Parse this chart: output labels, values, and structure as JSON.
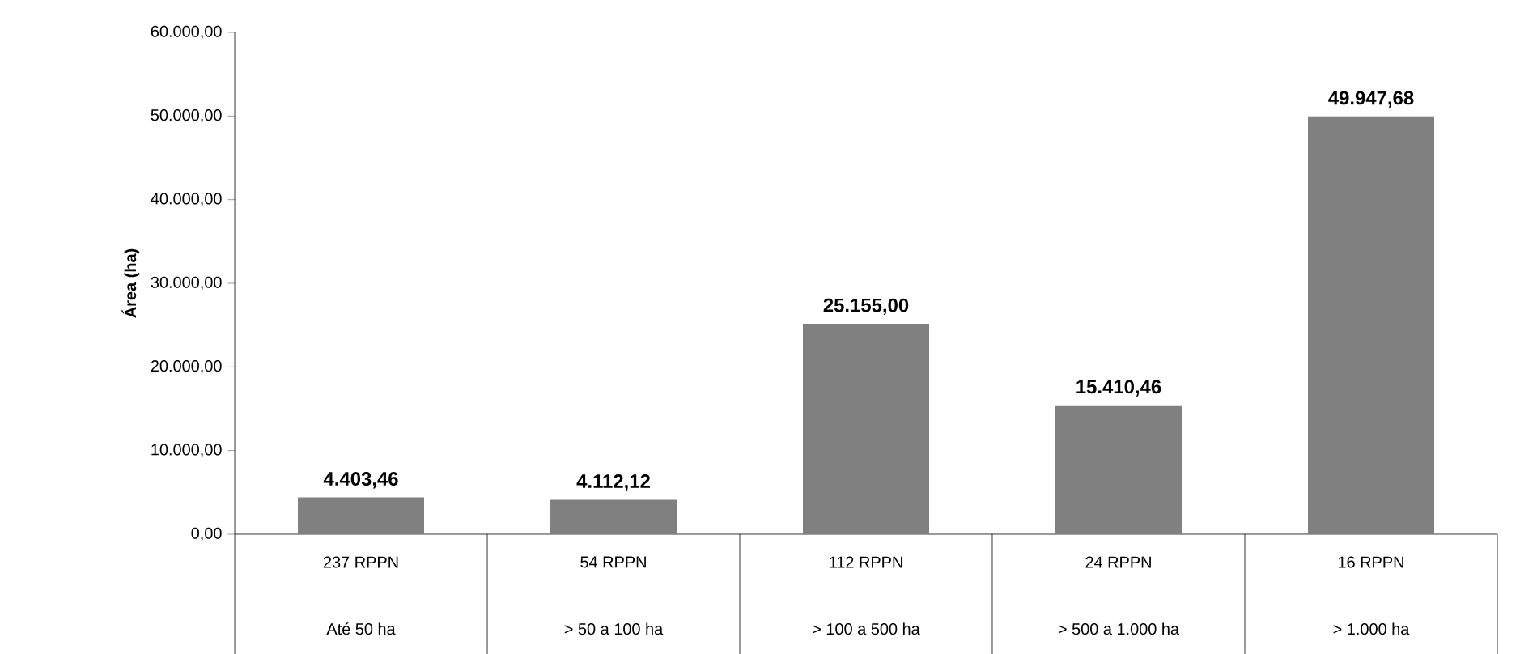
{
  "chart_data": {
    "type": "bar",
    "ylabel": "**Área (ha)**",
    "categories": [
      "237 RPPN",
      "54 RPPN",
      "112 RPPN",
      "24 RPPN",
      "16 RPPN"
    ],
    "values": [
      4403.46,
      4112.12,
      25155.0,
      15410.46,
      49947.68
    ],
    "value_labels": [
      "**4.403,46**",
      "**4.112,12**",
      "**25.155,00**",
      "**15.410,46**",
      "**49.947,68**"
    ],
    "color": "#808080",
    "ylim": [
      0,
      60000
    ],
    "yticks": [
      {
        "value": 0,
        "label": "0,00"
      },
      {
        "value": 10000,
        "label": "10.000,00"
      },
      {
        "value": 20000,
        "label": "20.000,00"
      },
      {
        "value": 30000,
        "label": "30.000,00"
      },
      {
        "value": 40000,
        "label": "40.000,00"
      },
      {
        "value": 50000,
        "label": "50.000,00"
      },
      {
        "value": 60000,
        "label": "60.000,00"
      }
    ],
    "annotations": [
      "Até 50 ha",
      "> 50 a 100 ha",
      "> 100 a 500 ha",
      "> 500 a 1.000 ha",
      "> 1.000 ha"
    ],
    "grid": false
  }
}
